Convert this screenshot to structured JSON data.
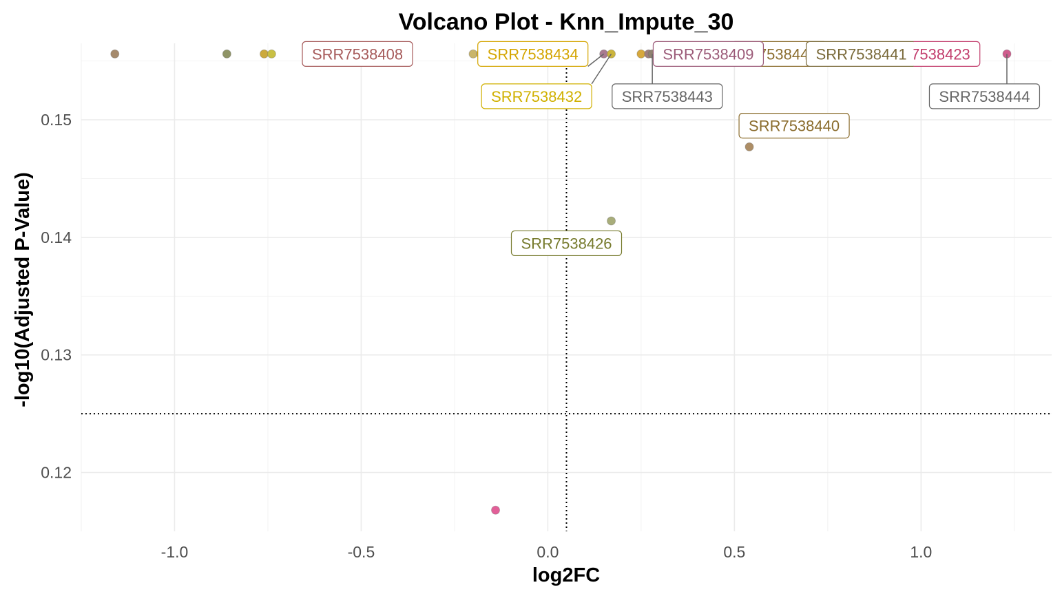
{
  "chart_data": {
    "type": "scatter",
    "title": "Volcano Plot - Knn_Impute_30",
    "xlabel": "log2FC",
    "ylabel": "-log10(Adjusted P-Value)",
    "xlim": [
      -1.25,
      1.35
    ],
    "ylim": [
      0.115,
      0.1565
    ],
    "x_ticks": [
      {
        "value": -1.0,
        "label": "-1.0"
      },
      {
        "value": -0.5,
        "label": "-0.5"
      },
      {
        "value": 0.0,
        "label": "0.0"
      },
      {
        "value": 0.5,
        "label": "0.5"
      },
      {
        "value": 1.0,
        "label": "1.0"
      }
    ],
    "y_ticks": [
      {
        "value": 0.12,
        "label": "0.12"
      },
      {
        "value": 0.13,
        "label": "0.13"
      },
      {
        "value": 0.14,
        "label": "0.14"
      },
      {
        "value": 0.15,
        "label": "0.15"
      }
    ],
    "x_threshold": 0.05,
    "y_threshold": 0.125,
    "grid": true,
    "points": [
      {
        "x": -1.16,
        "y": 0.1556,
        "color": "#a58a6c"
      },
      {
        "x": -0.86,
        "y": 0.1556,
        "color": "#8f9466"
      },
      {
        "x": -0.76,
        "y": 0.1556,
        "color": "#ccaa3e"
      },
      {
        "x": -0.74,
        "y": 0.1556,
        "color": "#c9c044"
      },
      {
        "x": -0.61,
        "y": 0.1556,
        "color": "#8d8a33"
      },
      {
        "x": -0.6,
        "y": 0.1556,
        "color": "#8d8a33"
      },
      {
        "x": -0.53,
        "y": 0.1556,
        "color": "#c27b8b"
      },
      {
        "x": -0.51,
        "y": 0.1556,
        "color": "#b0676f"
      },
      {
        "x": -0.2,
        "y": 0.1556,
        "color": "#c9b56a"
      },
      {
        "x": -0.18,
        "y": 0.1556,
        "color": "#b8a070"
      },
      {
        "x": 0.15,
        "y": 0.1556,
        "color": "#a97a90"
      },
      {
        "x": 0.17,
        "y": 0.1556,
        "color": "#ccb53c"
      },
      {
        "x": 0.25,
        "y": 0.1556,
        "color": "#d7a83c"
      },
      {
        "x": 0.27,
        "y": 0.1556,
        "color": "#9f7f7d"
      },
      {
        "x": 0.28,
        "y": 0.1556,
        "color": "#8f8270"
      },
      {
        "x": 1.23,
        "y": 0.1556,
        "color": "#d05d8e"
      },
      {
        "x": 0.54,
        "y": 0.1477,
        "color": "#ad8e66"
      },
      {
        "x": 0.17,
        "y": 0.1414,
        "color": "#a8ad7a"
      },
      {
        "x": -0.14,
        "y": 0.1168,
        "color": "#e25f98"
      }
    ],
    "annotations": [
      {
        "text": "SRR7538408",
        "color": "#a65a5a",
        "label_x": -0.51,
        "label_y": 0.1556
      },
      {
        "text": "SRR7538434",
        "color": "#d4a500",
        "label_x": -0.04,
        "label_y": 0.1556,
        "point_x": 0.15,
        "point_y": 0.1556
      },
      {
        "text": "SRR7538432",
        "color": "#d0b000",
        "label_x": -0.03,
        "label_y": 0.152,
        "point_x": 0.17,
        "point_y": 0.1556
      },
      {
        "text": "SRR7538443",
        "color": "#666666",
        "label_x": 0.32,
        "label_y": 0.152,
        "point_x": 0.28,
        "point_y": 0.1556
      },
      {
        "text": "SRR7538440",
        "color": "#8b6d2e",
        "label_x": 0.6,
        "label_y": 0.1556,
        "clip_left": 0.5
      },
      {
        "text": "SRR7538409",
        "color": "#9b5a78",
        "label_x": 0.43,
        "label_y": 0.1556
      },
      {
        "text": "SRR7538441",
        "color": "#7a6a3a",
        "label_x": 0.84,
        "label_y": 0.1556
      },
      {
        "text": "SRR7538423",
        "color": "#c23c6c",
        "label_x": 1.01,
        "label_y": 0.1556,
        "clip_left": 0.98
      },
      {
        "text": "SRR7538444",
        "color": "#666666",
        "label_x": 1.17,
        "label_y": 0.152,
        "point_x": 1.23,
        "point_y": 0.1556
      },
      {
        "text": "SRR7538440",
        "color": "#8b6d2e",
        "label_x": 0.66,
        "label_y": 0.1495
      },
      {
        "text": "SRR7538426",
        "color": "#767a2c",
        "label_x": 0.05,
        "label_y": 0.1395
      }
    ]
  }
}
